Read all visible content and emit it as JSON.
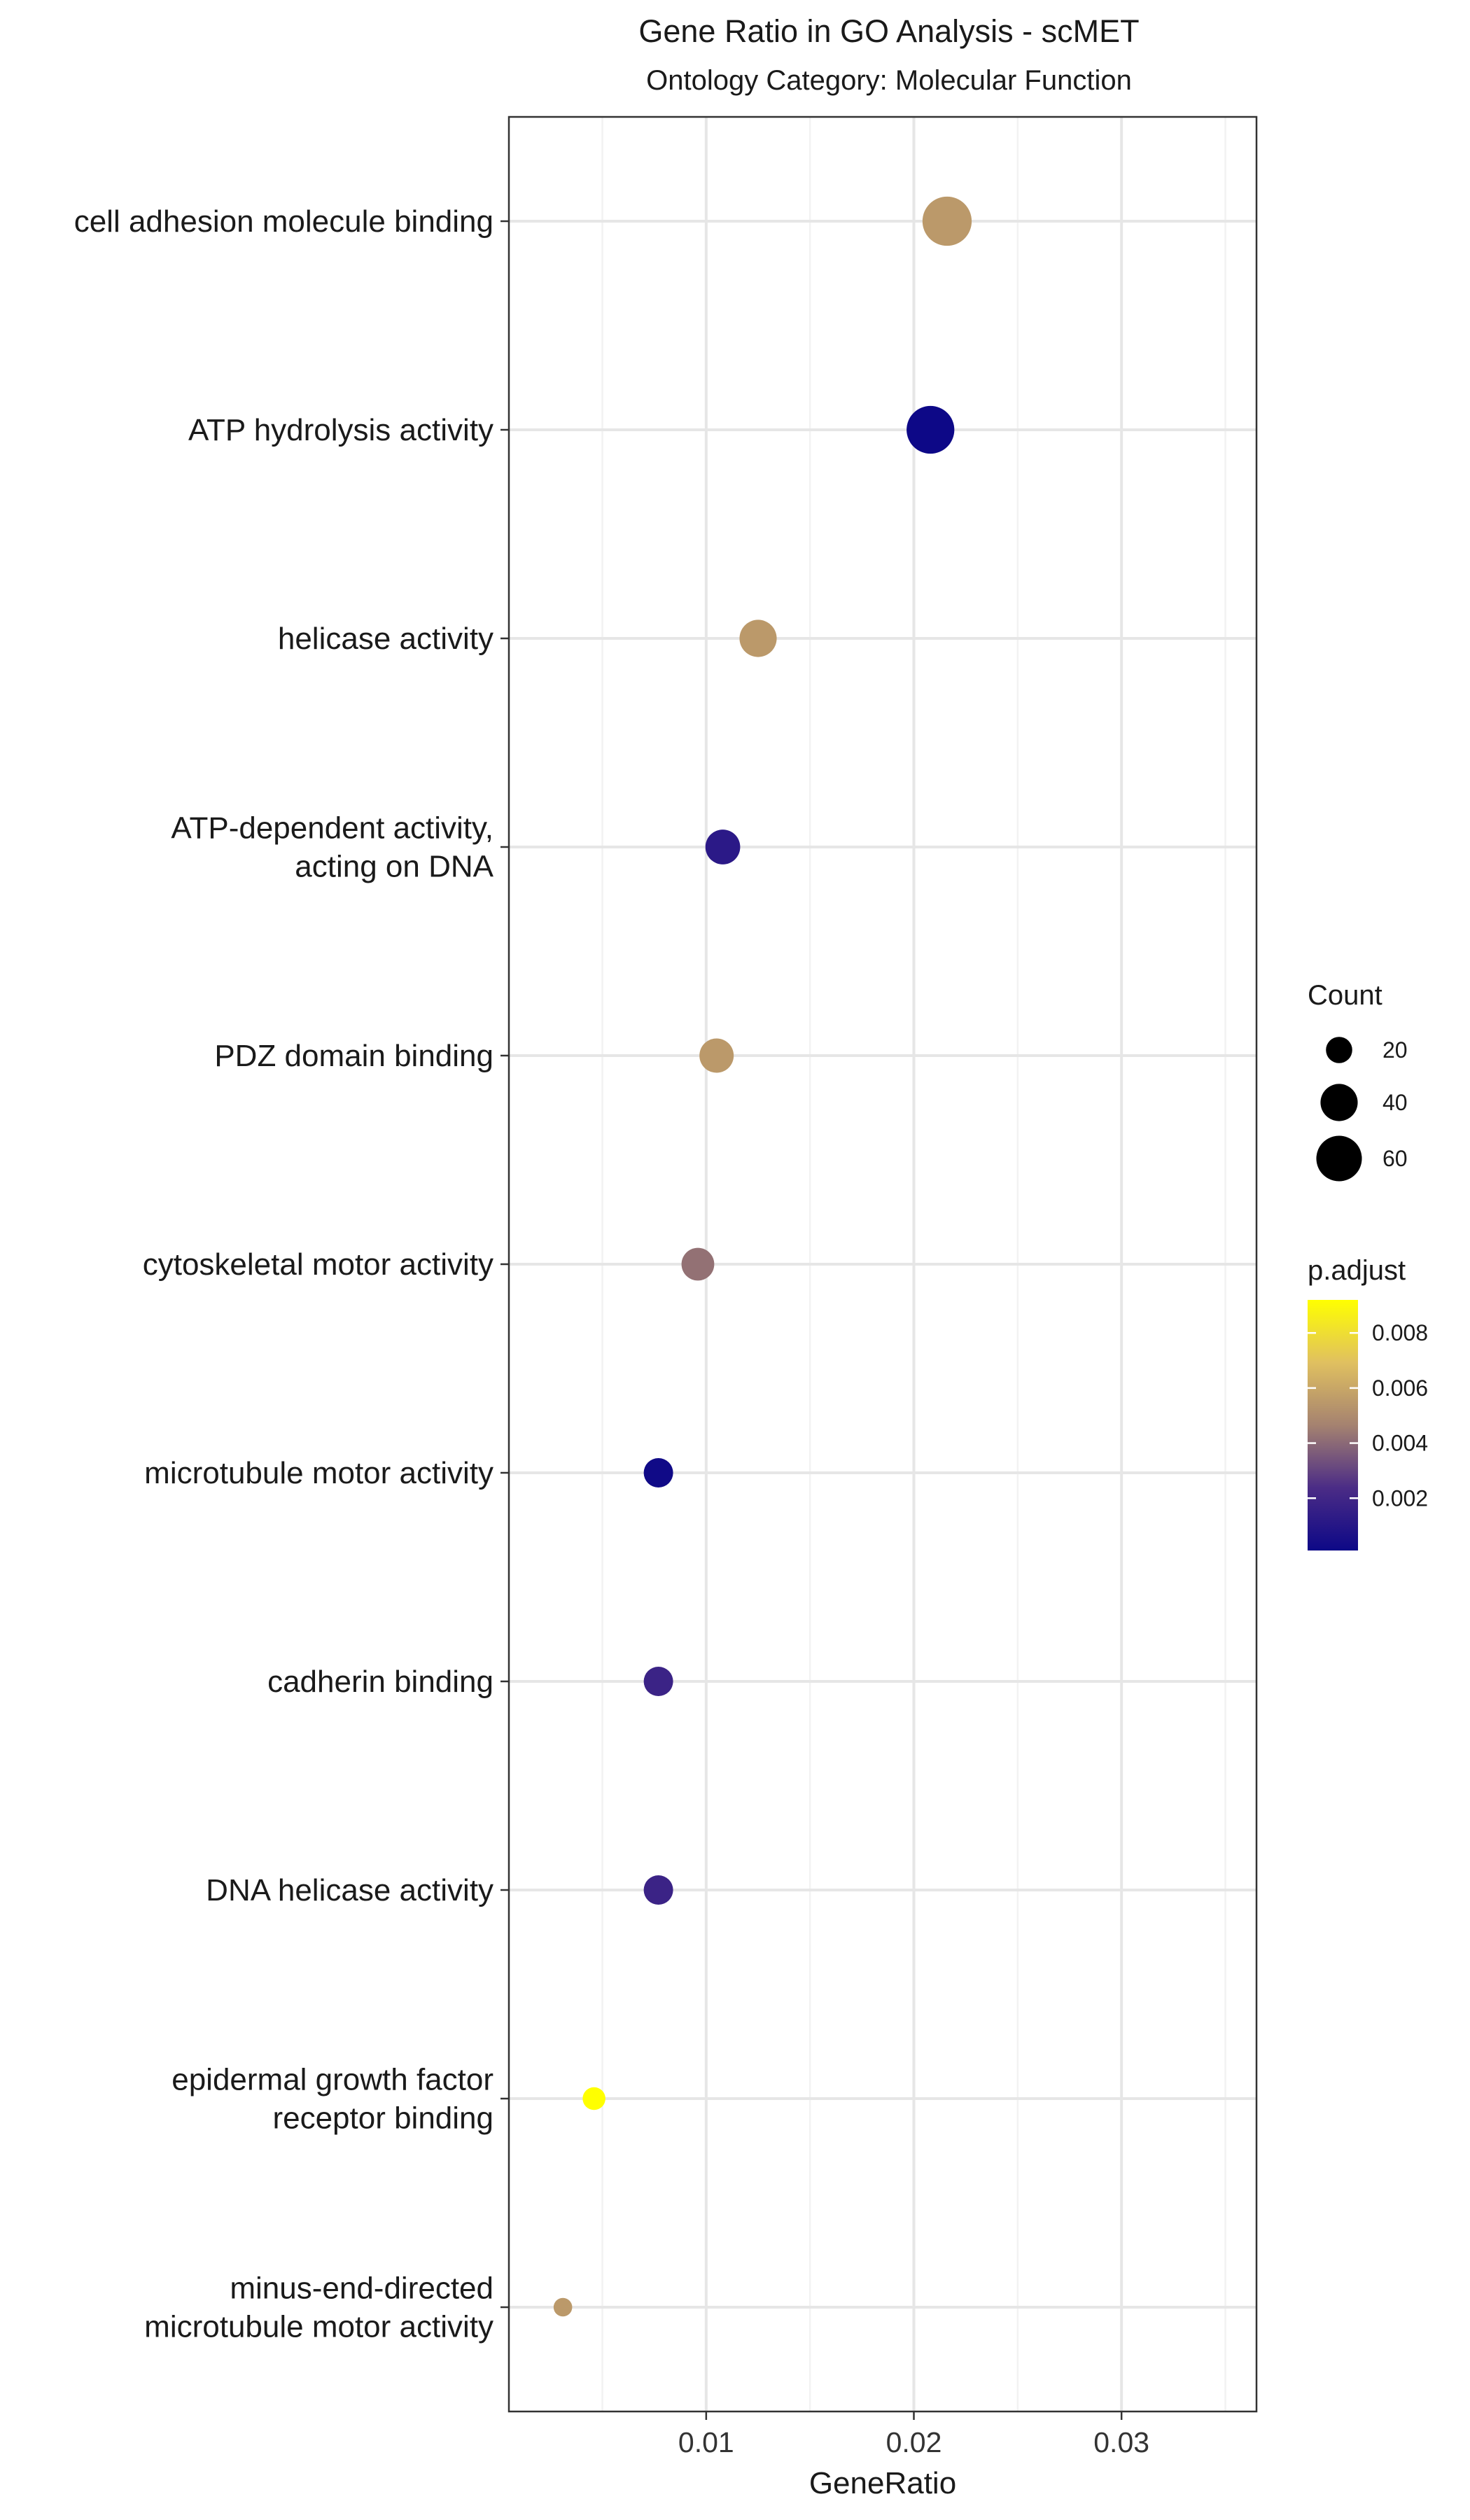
{
  "chart_data": {
    "type": "scatter",
    "title": "Gene Ratio in GO Analysis - scMET",
    "subtitle": "Ontology Category: Molecular Function",
    "xlabel": "GeneRatio",
    "ylabel": "",
    "xlim": [
      0.0005,
      0.0365
    ],
    "xticks": [
      {
        "value": 0.01,
        "label": "0.01"
      },
      {
        "value": 0.02,
        "label": "0.02"
      },
      {
        "value": 0.03,
        "label": "0.03"
      }
    ],
    "grid": true,
    "categories": [
      [
        "cell adhesion molecule binding"
      ],
      [
        "ATP hydrolysis activity"
      ],
      [
        "helicase activity"
      ],
      [
        "ATP-dependent activity,",
        "acting on DNA"
      ],
      [
        "PDZ domain binding"
      ],
      [
        "cytoskeletal motor activity"
      ],
      [
        "microtubule motor activity"
      ],
      [
        "cadherin binding"
      ],
      [
        "DNA helicase activity"
      ],
      [
        "epidermal growth factor",
        "receptor binding"
      ],
      [
        "minus-end-directed",
        "microtubule motor activity"
      ]
    ],
    "points": [
      {
        "gene_ratio": 0.0216,
        "count": 70,
        "p_adjust": 0.0055
      },
      {
        "gene_ratio": 0.0208,
        "count": 66,
        "p_adjust": 0.0001
      },
      {
        "gene_ratio": 0.0125,
        "count": 40,
        "p_adjust": 0.0055
      },
      {
        "gene_ratio": 0.0108,
        "count": 35,
        "p_adjust": 0.0012
      },
      {
        "gene_ratio": 0.0105,
        "count": 34,
        "p_adjust": 0.0055
      },
      {
        "gene_ratio": 0.0096,
        "count": 31,
        "p_adjust": 0.0042
      },
      {
        "gene_ratio": 0.0077,
        "count": 25,
        "p_adjust": 0.0002
      },
      {
        "gene_ratio": 0.0077,
        "count": 25,
        "p_adjust": 0.0018
      },
      {
        "gene_ratio": 0.0077,
        "count": 25,
        "p_adjust": 0.0018
      },
      {
        "gene_ratio": 0.0046,
        "count": 15,
        "p_adjust": 0.0092
      },
      {
        "gene_ratio": 0.0031,
        "count": 10,
        "p_adjust": 0.0055
      }
    ],
    "legend": {
      "placement": "right",
      "size_title": "Count",
      "size_entries": [
        {
          "value": 20,
          "label": "20"
        },
        {
          "value": 40,
          "label": "40"
        },
        {
          "value": 60,
          "label": "60"
        }
      ],
      "color_title": "p.adjust",
      "color_range": [
        0.0001,
        0.0092
      ],
      "color_ticks": [
        {
          "value": 0.002,
          "label": "0.002"
        },
        {
          "value": 0.004,
          "label": "0.004"
        },
        {
          "value": 0.006,
          "label": "0.006"
        },
        {
          "value": 0.008,
          "label": "0.008"
        }
      ],
      "color_scale": [
        "#0d0887",
        "#4b2c86",
        "#a58270",
        "#e0c060",
        "#ffff00"
      ]
    }
  }
}
